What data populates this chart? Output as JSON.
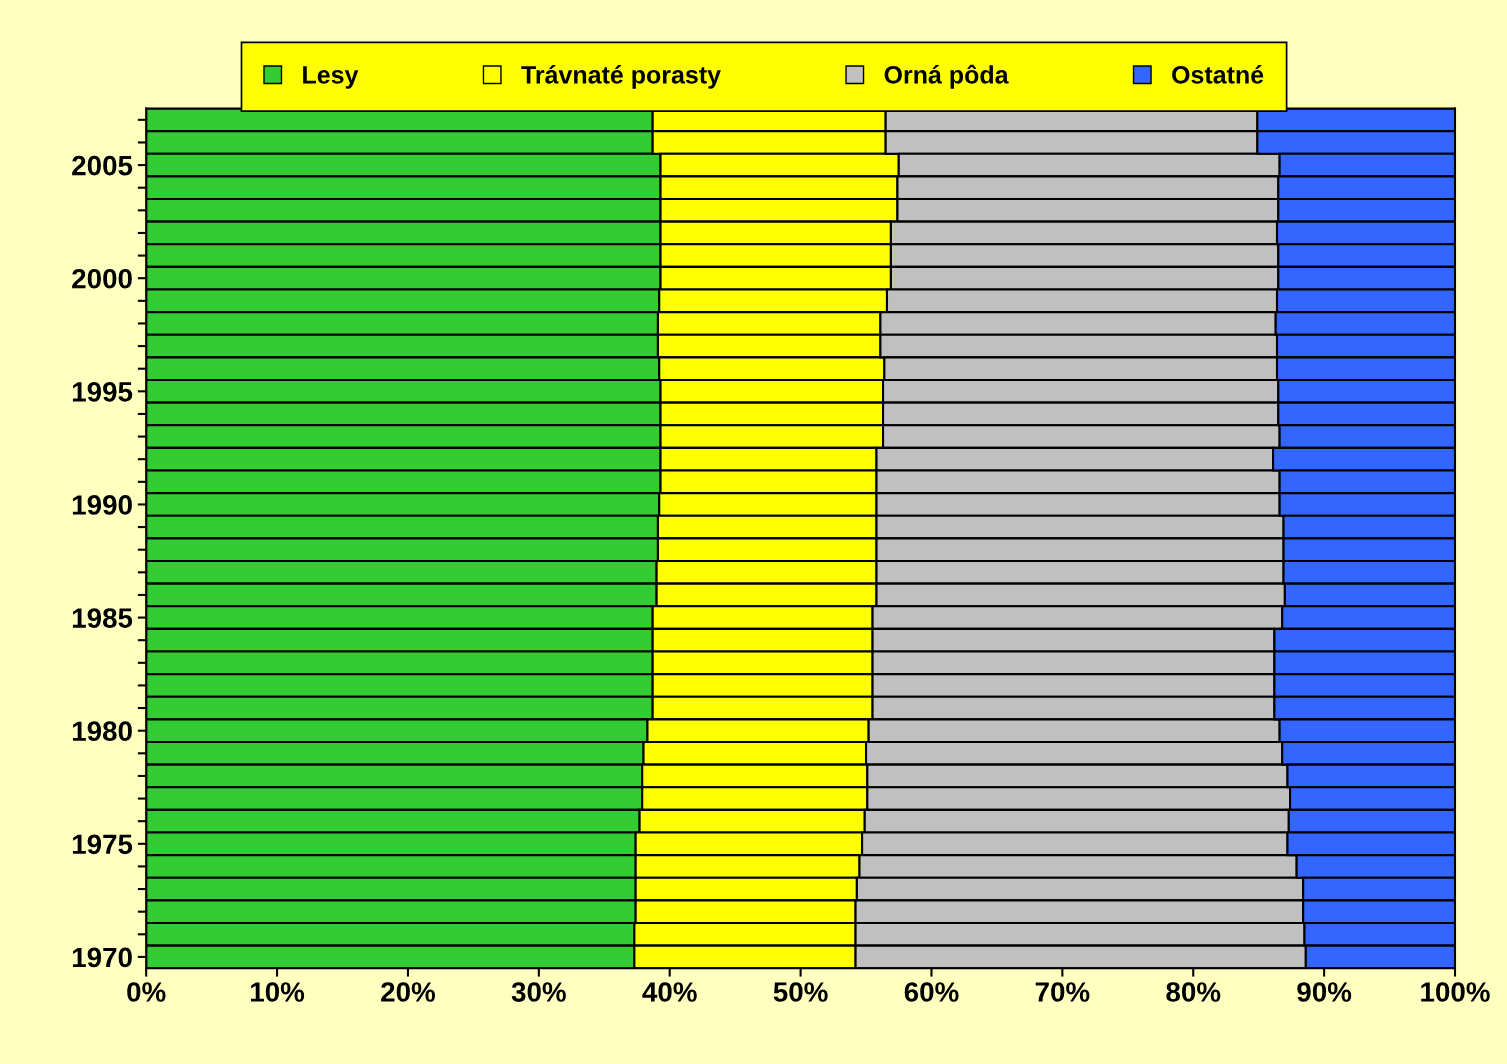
{
  "chart_data": {
    "type": "bar",
    "orientation": "horizontal",
    "stacked": true,
    "categories": [
      null,
      null,
      "2005",
      null,
      null,
      null,
      null,
      "2000",
      null,
      null,
      null,
      null,
      "1995",
      null,
      null,
      null,
      null,
      "1990",
      null,
      null,
      null,
      null,
      "1985",
      null,
      null,
      null,
      null,
      "1980",
      null,
      null,
      null,
      null,
      "1975",
      null,
      null,
      null,
      null,
      "1970"
    ],
    "series": [
      {
        "name": "Lesy",
        "color": "#33cc33",
        "values": [
          38.7,
          38.7,
          39.3,
          39.3,
          39.3,
          39.3,
          39.3,
          39.3,
          39.2,
          39.1,
          39.1,
          39.2,
          39.3,
          39.3,
          39.3,
          39.3,
          39.3,
          39.2,
          39.1,
          39.1,
          39.0,
          39.0,
          38.7,
          38.7,
          38.7,
          38.7,
          38.7,
          38.3,
          38.0,
          37.9,
          37.9,
          37.7,
          37.4,
          37.4,
          37.4,
          37.4,
          37.3,
          37.3
        ]
      },
      {
        "name": "Trávnaté porasty",
        "color": "#ffff00",
        "values": [
          17.8,
          17.8,
          18.2,
          18.1,
          18.1,
          17.6,
          17.6,
          17.6,
          17.4,
          17.0,
          17.0,
          17.2,
          17.0,
          17.0,
          17.0,
          16.5,
          16.5,
          16.6,
          16.7,
          16.7,
          16.8,
          16.8,
          16.8,
          16.8,
          16.8,
          16.8,
          16.8,
          16.9,
          17.0,
          17.2,
          17.2,
          17.2,
          17.3,
          17.1,
          16.9,
          16.8,
          16.9,
          16.9
        ]
      },
      {
        "name": "Orná pôda",
        "color": "#c0c0c0",
        "values": [
          28.4,
          28.4,
          29.1,
          29.1,
          29.1,
          29.5,
          29.6,
          29.6,
          29.8,
          30.2,
          30.3,
          30.0,
          30.2,
          30.2,
          30.3,
          30.3,
          30.8,
          30.8,
          31.1,
          31.1,
          31.1,
          31.2,
          31.3,
          30.7,
          30.7,
          30.7,
          30.7,
          31.4,
          31.8,
          32.1,
          32.3,
          32.4,
          32.5,
          33.4,
          34.1,
          34.2,
          34.3,
          34.4
        ]
      },
      {
        "name": "Ostatné",
        "color": "#3366ff",
        "values": [
          15.1,
          15.1,
          13.4,
          13.5,
          13.5,
          13.6,
          13.5,
          13.5,
          13.6,
          13.7,
          13.6,
          13.6,
          13.5,
          13.5,
          13.4,
          13.9,
          13.4,
          13.4,
          13.1,
          13.1,
          13.1,
          13.0,
          13.2,
          13.8,
          13.8,
          13.8,
          13.8,
          13.4,
          13.2,
          12.8,
          12.6,
          12.7,
          12.8,
          12.1,
          11.6,
          11.6,
          11.5,
          11.4
        ]
      }
    ],
    "xlim": [
      0,
      100
    ],
    "xticks": [
      {
        "value": 0,
        "label": "0%"
      },
      {
        "value": 10,
        "label": "10%"
      },
      {
        "value": 20,
        "label": "20%"
      },
      {
        "value": 30,
        "label": "30%"
      },
      {
        "value": 40,
        "label": "40%"
      },
      {
        "value": 50,
        "label": "50%"
      },
      {
        "value": 60,
        "label": "60%"
      },
      {
        "value": 70,
        "label": "70%"
      },
      {
        "value": 80,
        "label": "80%"
      },
      {
        "value": 90,
        "label": "90%"
      },
      {
        "value": 100,
        "label": "100%"
      }
    ],
    "grid": false,
    "legend": "top"
  }
}
